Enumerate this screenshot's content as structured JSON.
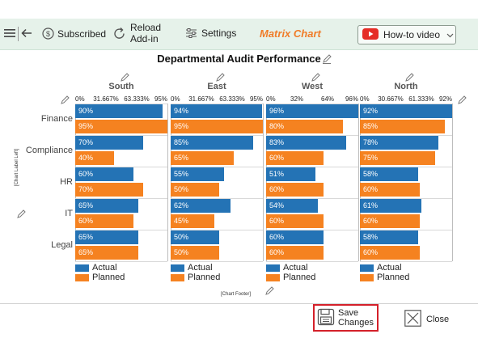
{
  "toolbar": {
    "subscribed_label": "Subscribed",
    "reload_line1": "Reload",
    "reload_line2": "Add-in",
    "settings_label": "Settings",
    "app_title": "Matrix Chart",
    "howto_label": "How-to video",
    "accent_color": "#f07c28",
    "youtube_color": "#e52d27"
  },
  "chart_data": {
    "type": "bar",
    "orientation": "horizontal",
    "layout": "matrix",
    "title": "Departmental Audit Performance",
    "left_axis_label": "[Chart Label Left]",
    "footer_label": "[Chart Footer]",
    "categories": [
      "Finance",
      "Compliance",
      "HR",
      "IT",
      "Legal"
    ],
    "series_names": [
      "Actual",
      "Planned"
    ],
    "series_colors": [
      "#2473b5",
      "#f58220"
    ],
    "panels": [
      {
        "name": "South",
        "ticks": [
          "0%",
          "31.667%",
          "63.333%",
          "95%"
        ],
        "xlim": [
          0,
          95
        ],
        "actual": [
          90,
          70,
          60,
          65,
          65
        ],
        "planned": [
          95,
          40,
          70,
          60,
          65
        ],
        "actual_labels": [
          "90%",
          "70%",
          "60%",
          "65%",
          "65%"
        ],
        "planned_labels": [
          "95%",
          "40%",
          "70%",
          "60%",
          "65%"
        ]
      },
      {
        "name": "East",
        "ticks": [
          "0%",
          "31.667%",
          "63.333%",
          "95%"
        ],
        "xlim": [
          0,
          95
        ],
        "actual": [
          94,
          85,
          55,
          62,
          50
        ],
        "planned": [
          95,
          65,
          50,
          45,
          50
        ],
        "actual_labels": [
          "94%",
          "85%",
          "55%",
          "62%",
          "50%"
        ],
        "planned_labels": [
          "95%",
          "65%",
          "50%",
          "45%",
          "50%"
        ]
      },
      {
        "name": "West",
        "ticks": [
          "0%",
          "32%",
          "64%",
          "96%"
        ],
        "xlim": [
          0,
          96
        ],
        "actual": [
          96,
          83,
          51,
          54,
          60
        ],
        "planned": [
          80,
          60,
          60,
          60,
          60
        ],
        "actual_labels": [
          "96%",
          "83%",
          "51%",
          "54%",
          "60%"
        ],
        "planned_labels": [
          "80%",
          "60%",
          "60%",
          "60%",
          "60%"
        ]
      },
      {
        "name": "North",
        "ticks": [
          "0%",
          "30.667%",
          "61.333%",
          "92%"
        ],
        "xlim": [
          0,
          92
        ],
        "actual": [
          92,
          78,
          58,
          61,
          58
        ],
        "planned": [
          85,
          75,
          60,
          60,
          60
        ],
        "actual_labels": [
          "92%",
          "78%",
          "58%",
          "61%",
          "58%"
        ],
        "planned_labels": [
          "85%",
          "75%",
          "60%",
          "60%",
          "60%"
        ]
      }
    ]
  },
  "actions": {
    "save_line1": "Save",
    "save_line2": "Changes",
    "close_label": "Close"
  }
}
